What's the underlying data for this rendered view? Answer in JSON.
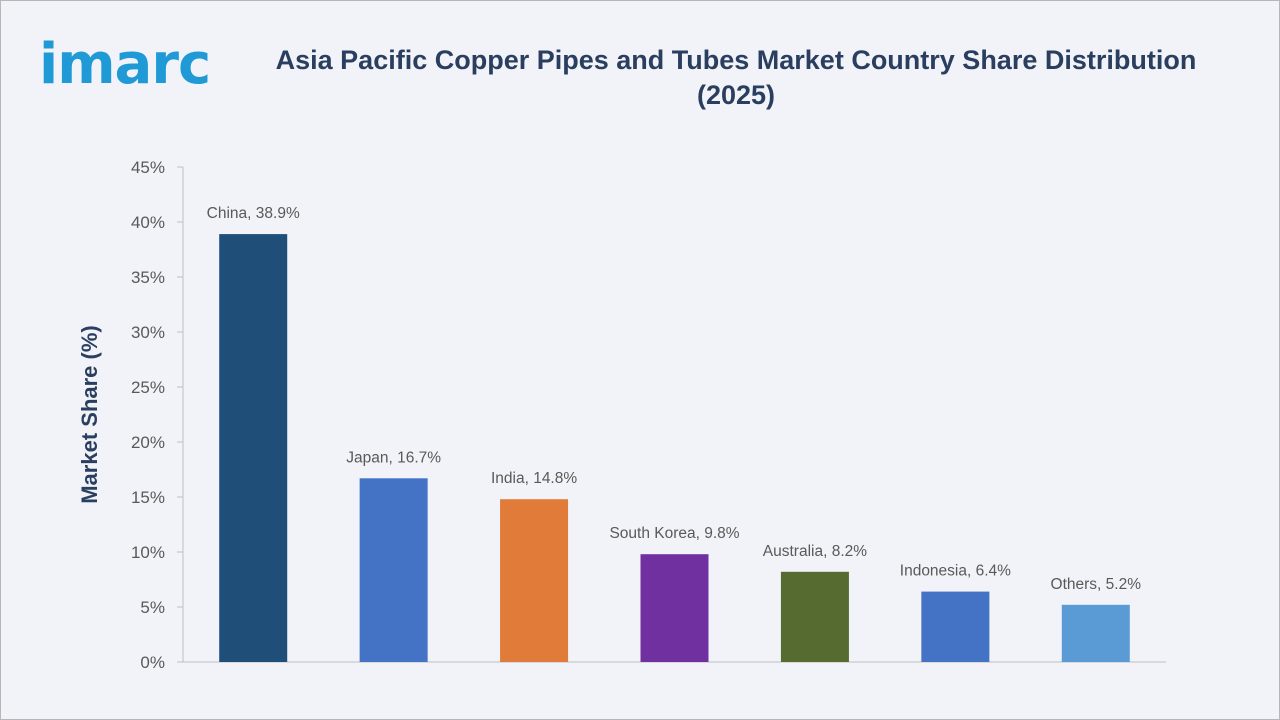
{
  "logo": {
    "text": "imarc",
    "color": "#1f9ad6"
  },
  "chart_data": {
    "type": "bar",
    "title": "Asia Pacific Copper Pipes and Tubes Market Country Share Distribution (2025)",
    "title_lines": [
      "Asia Pacific Copper Pipes and Tubes Market Country Share Distribution",
      "(2025)"
    ],
    "xlabel": "",
    "ylabel": "Market Share (%)",
    "ylim": [
      0,
      45
    ],
    "yticks": [
      0,
      5,
      10,
      15,
      20,
      25,
      30,
      35,
      40,
      45
    ],
    "ytick_labels": [
      "0%",
      "5%",
      "10%",
      "15%",
      "20%",
      "25%",
      "30%",
      "35%",
      "40%",
      "45%"
    ],
    "grid": false,
    "categories": [
      "China",
      "Japan",
      "India",
      "South Korea",
      "Australia",
      "Indonesia",
      "Others"
    ],
    "values": [
      38.9,
      16.7,
      14.8,
      9.8,
      8.2,
      6.4,
      5.2
    ],
    "data_labels": [
      "China, 38.9%",
      "Japan, 16.7%",
      "India, 14.8%",
      "South Korea, 9.8%",
      "Australia, 8.2%",
      "Indonesia, 6.4%",
      "Others, 5.2%"
    ],
    "colors": [
      "#1f4e79",
      "#4472c4",
      "#e07b39",
      "#7030a0",
      "#556b2f",
      "#4472c4",
      "#5b9bd5"
    ]
  }
}
